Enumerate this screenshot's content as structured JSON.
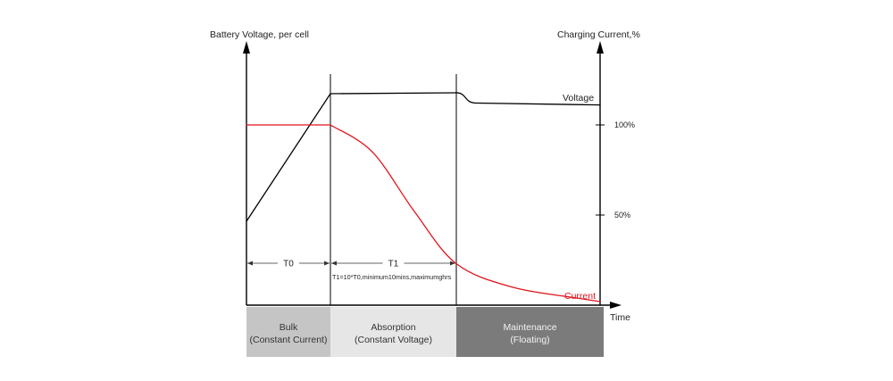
{
  "chart_data": {
    "type": "line",
    "y_left_label": "Battery Voltage, per cell",
    "y_right_label": "Charging Current,%",
    "x_label": "Time",
    "right_ticks": [
      {
        "label": "100%",
        "value": 100
      },
      {
        "label": "50%",
        "value": 50
      }
    ],
    "series": [
      {
        "name": "Voltage",
        "color": "#000000",
        "points": [
          [
            0,
            48
          ],
          [
            1,
            116
          ],
          [
            2.5,
            116.5
          ],
          [
            2.75,
            111
          ],
          [
            4.3,
            110
          ]
        ]
      },
      {
        "name": "Current",
        "color": "#e0151d",
        "points": [
          [
            0,
            100
          ],
          [
            1,
            100
          ],
          [
            1.5,
            85
          ],
          [
            2,
            52
          ],
          [
            2.5,
            23
          ],
          [
            3.2,
            10
          ],
          [
            4,
            4
          ],
          [
            4.3,
            2
          ]
        ]
      }
    ],
    "intervals": [
      {
        "label": "T0",
        "start": 0,
        "end": 1
      },
      {
        "label": "T1",
        "start": 1,
        "end": 2.5,
        "note": "T1=10*T0,minimum10mins,maximumghrs"
      }
    ],
    "phases": [
      {
        "label": "Bulk",
        "sublabel": "(Constant Current)",
        "start": 0,
        "end": 1,
        "color": "#c5c5c5"
      },
      {
        "label": "Absorption",
        "sublabel": "(Constant Voltage)",
        "start": 1,
        "end": 2.5,
        "color": "#e6e6e6"
      },
      {
        "label": "Maintenance",
        "sublabel": "(Floating)",
        "start": 2.5,
        "end": 4.3,
        "color": "#7b7b7b"
      }
    ],
    "colors": {
      "axis": "#000000",
      "current": "#e0151d",
      "text": "#222222"
    }
  }
}
